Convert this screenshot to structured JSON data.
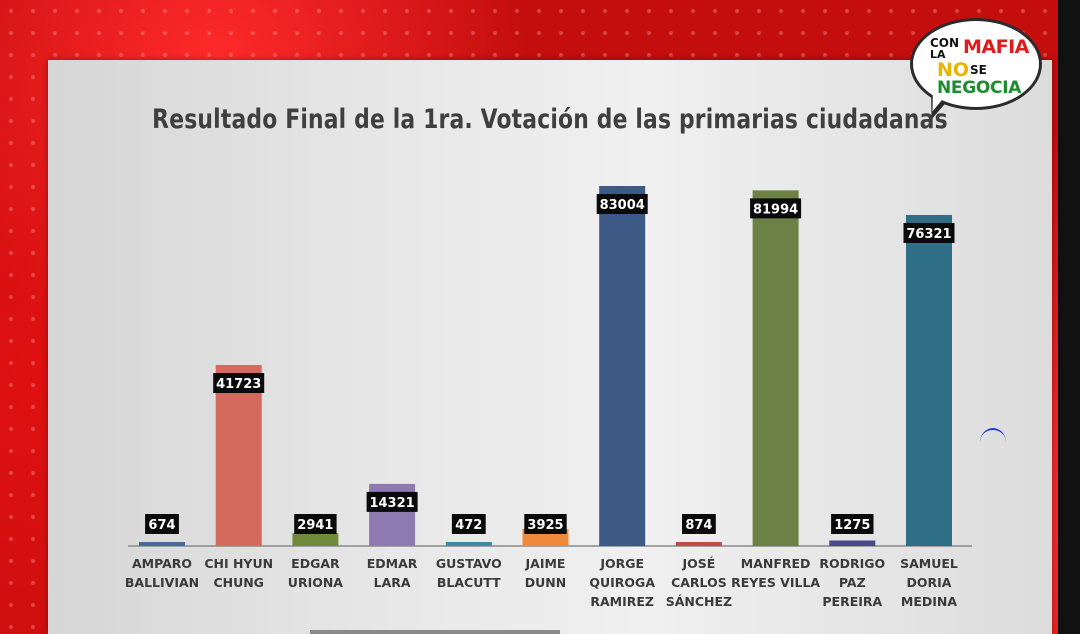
{
  "chart_data": {
    "type": "bar",
    "title": "Resultado Final de la 1ra. Votación de las primarias ciudadanas",
    "categories": [
      [
        "AMPARO",
        "BALLIVIAN"
      ],
      [
        "CHI HYUN",
        "CHUNG"
      ],
      [
        "EDGAR",
        "URIONA"
      ],
      [
        "EDMAR",
        "LARA"
      ],
      [
        "GUSTAVO",
        "BLACUTT"
      ],
      [
        "JAIME",
        "DUNN"
      ],
      [
        "JORGE",
        "QUIROGA",
        "RAMIREZ"
      ],
      [
        "JOSÉ",
        "CARLOS",
        "SÁNCHEZ"
      ],
      [
        "MANFRED",
        "REYES VILLA"
      ],
      [
        "RODRIGO",
        "PAZ",
        "PEREIRA"
      ],
      [
        "SAMUEL",
        "DORIA",
        "MEDINA"
      ]
    ],
    "values": [
      674,
      41723,
      2941,
      14321,
      472,
      3925,
      83004,
      874,
      81994,
      1275,
      76321
    ],
    "value_labels": [
      "674",
      "41723",
      "2941",
      "14321",
      "472",
      "3925",
      "83004",
      "874",
      "81994",
      "1275",
      "76321"
    ],
    "colors": [
      "#4a6a9a",
      "#d46a5e",
      "#6e8a3a",
      "#8e7ab0",
      "#3e8aa0",
      "#f08a3a",
      "#3d5a86",
      "#c04a48",
      "#6b8244",
      "#4a4a8a",
      "#2e6e86"
    ],
    "ylim": [
      0,
      83004
    ],
    "grid": false,
    "legend": "none",
    "xlabel": "",
    "ylabel": ""
  },
  "logo": {
    "line1a": "CON",
    "line1b": "LA",
    "mafia": "MAFIA",
    "no": "NO",
    "se": "SE",
    "negocia": "NEGOCIA"
  }
}
